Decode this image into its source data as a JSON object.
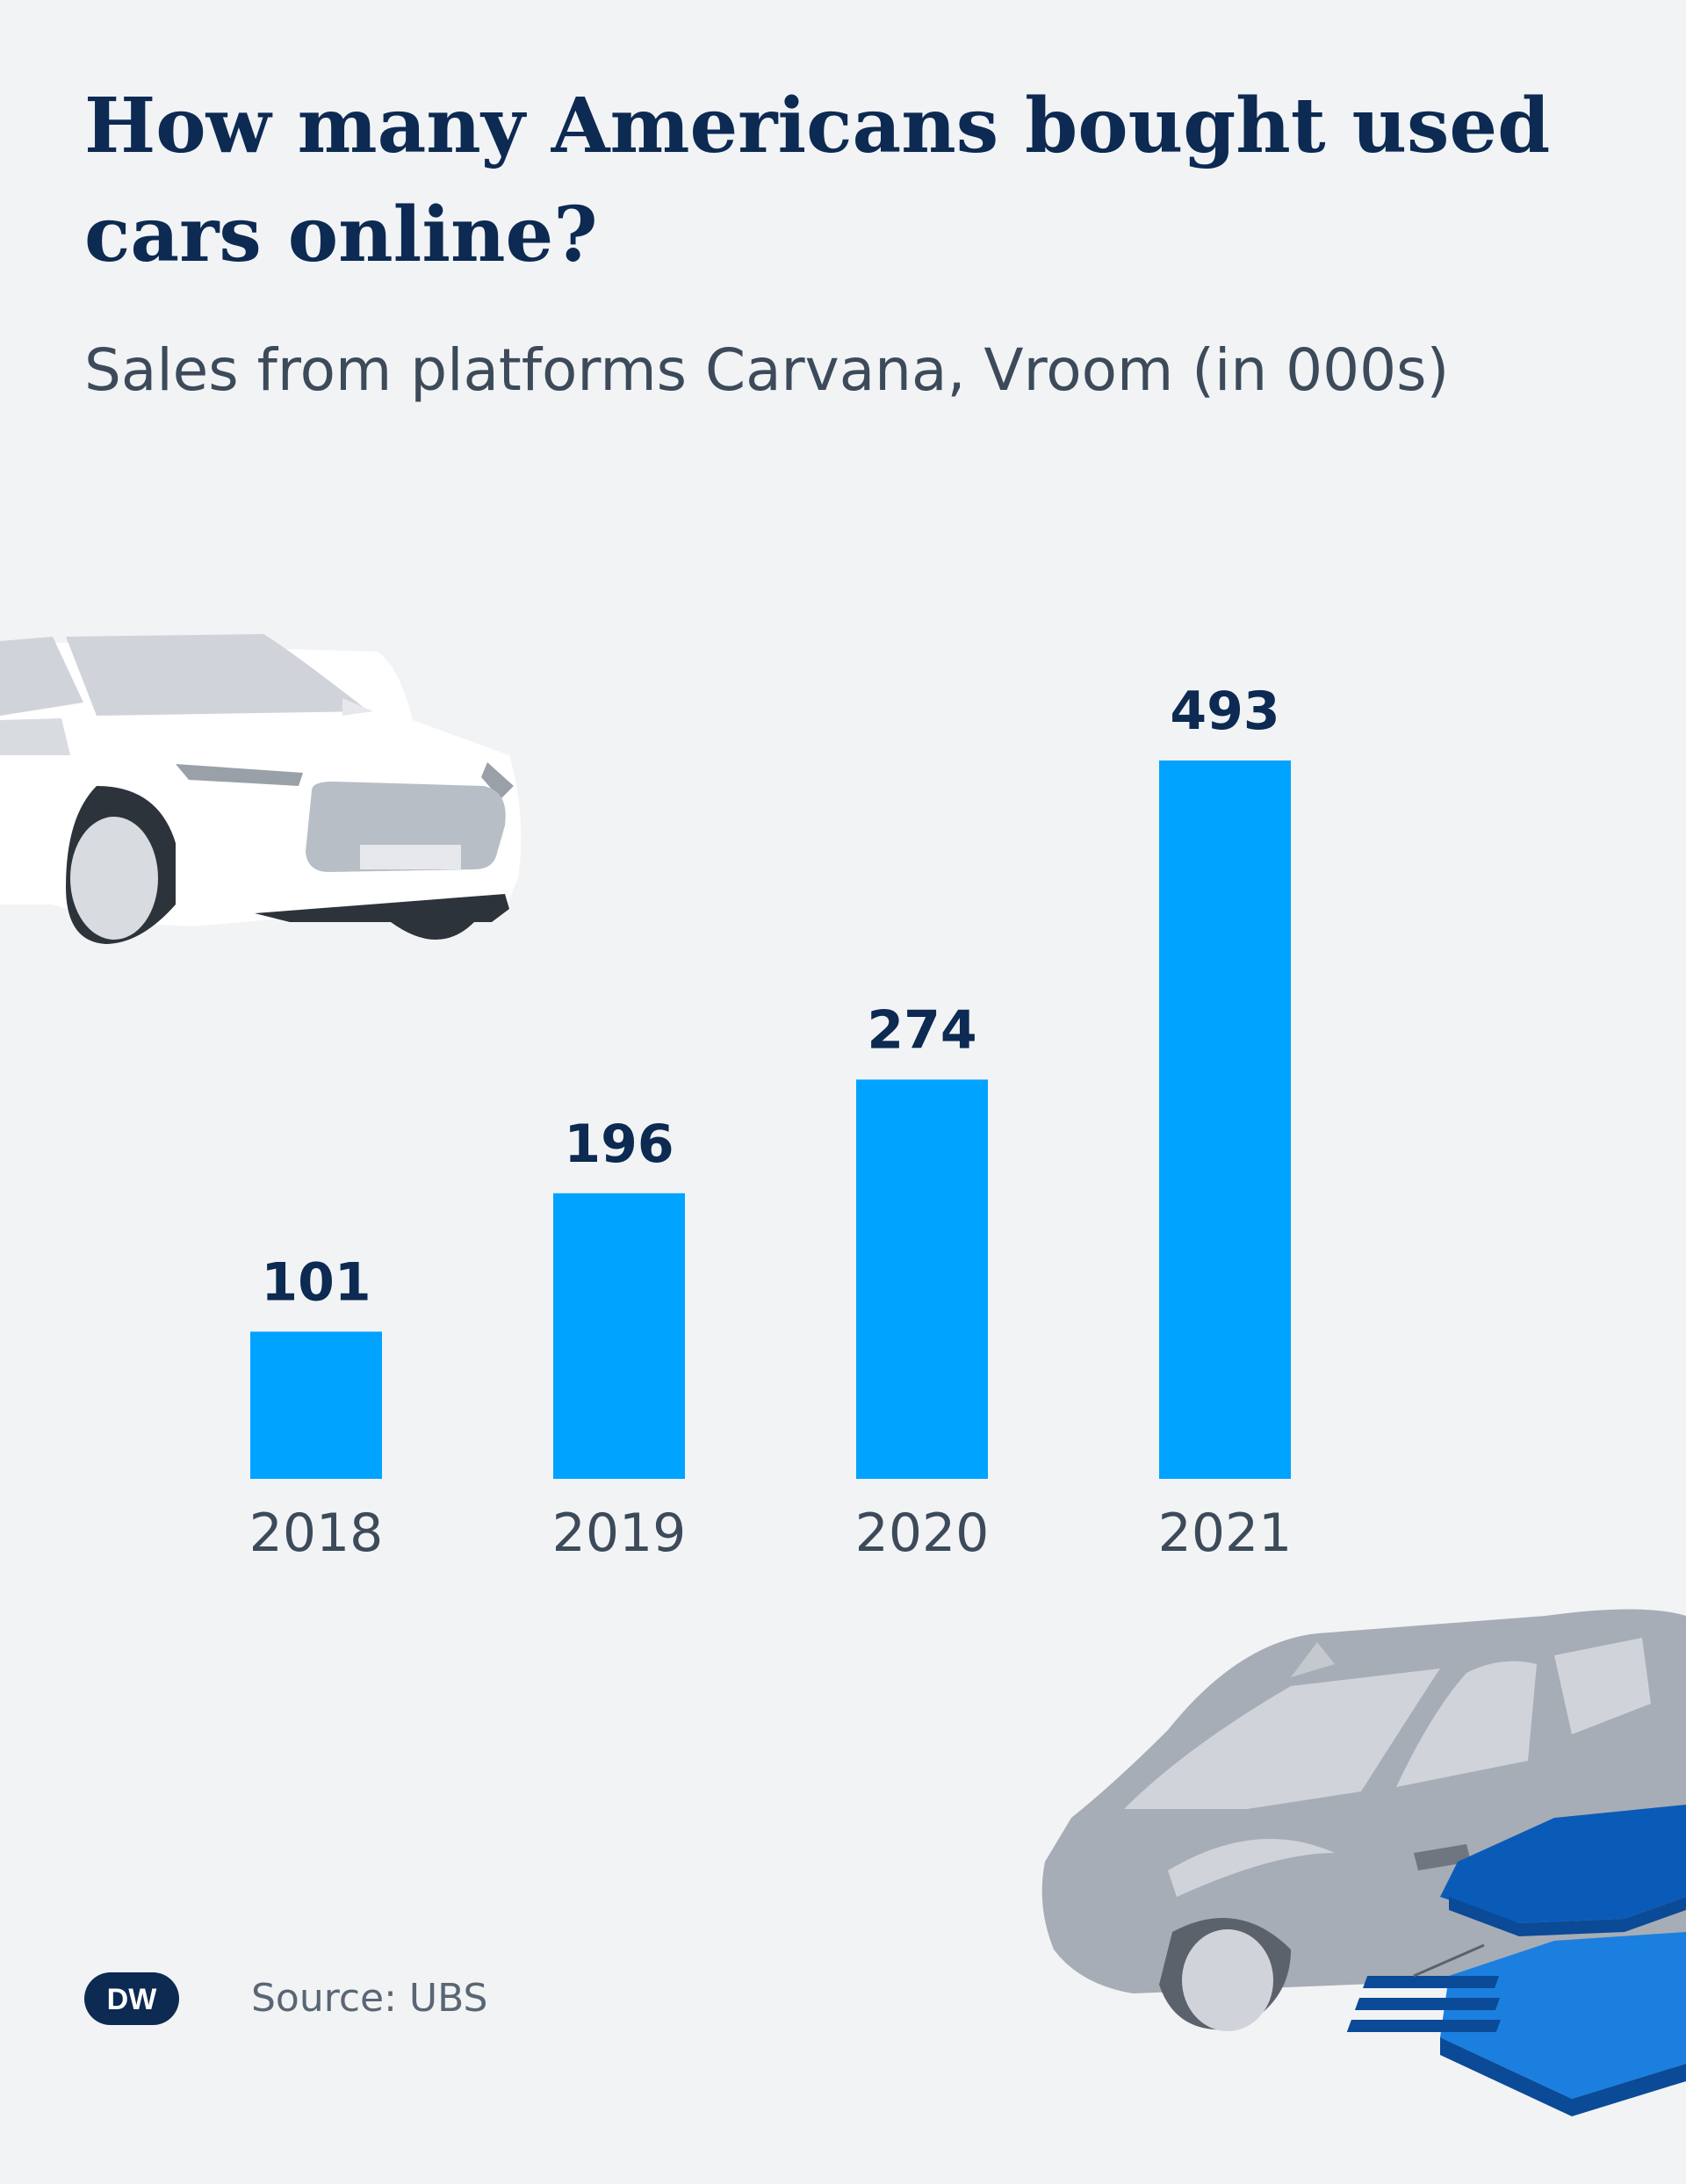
{
  "title": "How many Americans bought used cars online?",
  "subtitle": "Sales from platforms Carvana, Vroom (in 000s)",
  "source": "Source: UBS",
  "brand": {
    "logo_text": "DW",
    "logo_color": "#0c2a52"
  },
  "colors": {
    "bar": "#00a3ff",
    "title": "#0c2a52",
    "text": "#3c4a5a",
    "background": "#f2f3f5"
  },
  "chart_data": {
    "type": "bar",
    "title": "How many Americans bought used cars online?",
    "subtitle": "Sales from platforms Carvana, Vroom (in 000s)",
    "categories": [
      "2018",
      "2019",
      "2020",
      "2021"
    ],
    "values": [
      101,
      196,
      274,
      493
    ],
    "xlabel": "",
    "ylabel": "",
    "ylim": [
      0,
      493
    ],
    "grid": false,
    "legend": "none",
    "data_labels": true
  }
}
